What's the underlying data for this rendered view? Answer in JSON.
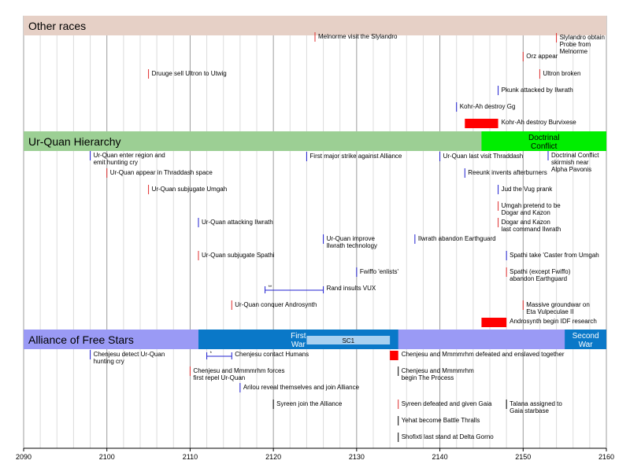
{
  "chart_data": {
    "type": "timeline",
    "title": "",
    "xlabel": "",
    "ylabel": "",
    "xlim": [
      2090,
      2160
    ],
    "x_ticks": [
      2090,
      2100,
      2110,
      2120,
      2130,
      2140,
      2150,
      2160
    ],
    "minor_grid_step": 2,
    "grid": true,
    "sections": [
      {
        "name": "Other races",
        "color": "#e6d0c6",
        "periods": [],
        "events": [
          {
            "year": 2125,
            "label": "Melnorme visit the Slylandro",
            "color": "#e03030"
          },
          {
            "year": 2154,
            "label": "Slylandro obtain Probe from Melnorme",
            "color": "#e03030"
          },
          {
            "year": 2150,
            "label": "Orz appear",
            "color": "#e03030"
          },
          {
            "year": 2105,
            "label": "Druuge sell Ultron to Utwig",
            "color": "#e03030"
          },
          {
            "year": 2152,
            "label": "Ultron broken",
            "color": "#e03030"
          },
          {
            "year": 2147,
            "label": "Pkunk attacked by Ilwrath",
            "color": "#2020d0"
          },
          {
            "year": 2142,
            "label": "Kohr-Ah destroy Gg",
            "color": "#2020d0"
          },
          {
            "start": 2143,
            "end": 2147,
            "label": "Kohr-Ah destroy Burvixese",
            "color": "#ff0000"
          }
        ]
      },
      {
        "name": "Ur-Quan Hierarchy",
        "color": "#9ccf94",
        "periods": [
          {
            "start": 2145,
            "end": 2160,
            "label": "Doctrinal Conflict",
            "color": "#00ee00"
          }
        ],
        "events": [
          {
            "year": 2098,
            "label": "Ur-Quan enter region and emit hunting cry",
            "color": "#2020d0"
          },
          {
            "year": 2124,
            "label": "First major strike against Alliance",
            "color": "#2020d0"
          },
          {
            "year": 2140,
            "label": "Ur-Quan last visit Thraddash",
            "color": "#2020d0"
          },
          {
            "year": 2153,
            "label": "Doctrinal Conflict skirmish near Alpha Pavonis",
            "color": "#2020d0"
          },
          {
            "year": 2100,
            "label": "Ur-Quan appear in Thraddash space",
            "color": "#e03030"
          },
          {
            "year": 2143,
            "label": "Reeunk invents afterburners",
            "color": "#2020d0"
          },
          {
            "year": 2105,
            "label": "Ur-Quan subjugate Umgah",
            "color": "#e03030"
          },
          {
            "year": 2147,
            "label": "Jud the Vug prank",
            "color": "#2020d0"
          },
          {
            "year": 2147,
            "label": "Umgah pretend to be Dogar and Kazon",
            "color": "#e03030"
          },
          {
            "year": 2111,
            "label": "Ur-Quan attacking Ilwrath",
            "color": "#2020d0"
          },
          {
            "year": 2147,
            "label": "Dogar and Kazon last command Ilwrath",
            "color": "#e03030"
          },
          {
            "year": 2126,
            "label": "Ur-Quan improve Ilwrath technology",
            "color": "#2020d0"
          },
          {
            "year": 2137,
            "label": "Ilwrath abandon Earthguard",
            "color": "#2020d0"
          },
          {
            "year": 2111,
            "label": "Ur-Quan subjugate Spathi",
            "color": "#e03030"
          },
          {
            "year": 2148,
            "label": "Spathi take 'Caster from Umgah",
            "color": "#2020d0"
          },
          {
            "year": 2130,
            "label": "Fwiffo 'enlists'",
            "color": "#2020d0"
          },
          {
            "year": 2148,
            "label": "Spathi (except Fwiffo) abandon Earthguard",
            "color": "#e03030"
          },
          {
            "start": 2119,
            "end": 2126,
            "label": "Rand insults VUX",
            "color": "#2020d0",
            "note": "**"
          },
          {
            "year": 2115,
            "label": "Ur-Quan conquer Androsynth",
            "color": "#e03030"
          },
          {
            "year": 2150,
            "label": "Massive groundwar on Eta Vulpeculae II",
            "color": "#e03030"
          },
          {
            "start": 2145,
            "end": 2148,
            "label": "Androsynth begin IDF research",
            "color": "#ff0000"
          }
        ]
      },
      {
        "name": "Alliance of Free Stars",
        "color": "#9a9af5",
        "periods": [
          {
            "start": 2111,
            "end": 2135,
            "label": "First War",
            "color": "#0a78c8"
          },
          {
            "start": 2124,
            "end": 2134,
            "label": "SC1",
            "color": "#a8d0f0"
          },
          {
            "start": 2155,
            "end": 2160,
            "label": "Second War",
            "color": "#0a78c8"
          }
        ],
        "events": [
          {
            "year": 2098,
            "label": "Chenjesu detect Ur-Quan hunting cry",
            "color": "#2020d0"
          },
          {
            "start": 2112,
            "end": 2115,
            "label": "Chenjesu contact Humans",
            "color": "#2020d0",
            "note": "*"
          },
          {
            "start": 2134,
            "end": 2135,
            "label": "Chenjesu and Mmmmrhm defeated and enslaved together",
            "color": "#ff0000"
          },
          {
            "year": 2110,
            "label": "Chenjesu and Mmmmrhm forces first repel Ur-Quan",
            "color": "#e03030"
          },
          {
            "year": 2135,
            "label": "Chenjesu and Mmmmrhm begin The Process",
            "color": "#000000"
          },
          {
            "year": 2116,
            "label": "Arilou reveal themselves and join Alliance",
            "color": "#2020d0"
          },
          {
            "year": 2120,
            "label": "Syreen join the Alliance",
            "color": "#000000"
          },
          {
            "year": 2135,
            "label": "Syreen defeated and given Gaia",
            "color": "#e03030"
          },
          {
            "year": 2148,
            "label": "Talana assigned to Gaia starbase",
            "color": "#000000"
          },
          {
            "year": 2135,
            "label": "Yehat become Battle Thralls",
            "color": "#000000"
          },
          {
            "year": 2135,
            "label": "Shofixti last stand at Delta Gorno",
            "color": "#000000"
          }
        ]
      }
    ]
  }
}
